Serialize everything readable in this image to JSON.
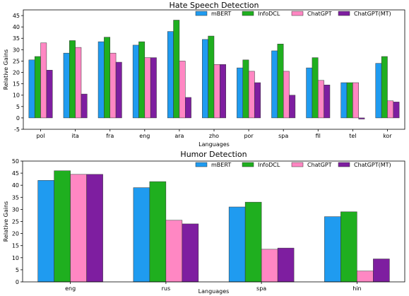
{
  "chart_data": [
    {
      "type": "bar",
      "title": "Hate Speech Detection",
      "xlabel": "Languages",
      "ylabel": "Relative Gains",
      "ylim": [
        -5,
        47.5
      ],
      "yticks": [
        -5,
        0,
        5,
        10,
        15,
        20,
        25,
        30,
        35,
        40,
        45
      ],
      "grid": false,
      "legend_position": "top-right",
      "categories": [
        "pol",
        "ita",
        "fra",
        "eng",
        "ara",
        "zho",
        "por",
        "spa",
        "fil",
        "tel",
        "kor"
      ],
      "series": [
        {
          "name": "mBERT",
          "color": "#1f9bf0",
          "values": [
            25.5,
            28.5,
            33.5,
            32,
            38,
            34.5,
            22,
            29.5,
            22,
            15.5,
            24
          ]
        },
        {
          "name": "InfoDCL",
          "color": "#1faf1f",
          "values": [
            27,
            34,
            35.5,
            33.5,
            43,
            36,
            25.5,
            32.5,
            26.5,
            15.5,
            27
          ]
        },
        {
          "name": "ChatGPT",
          "color": "#ff87c3",
          "values": [
            33,
            31,
            28.5,
            26.5,
            25,
            23.5,
            20.5,
            20.5,
            16.5,
            15.5,
            7.5
          ]
        },
        {
          "name": "ChatGPT(MT)",
          "color": "#7e1ea0",
          "values": [
            21,
            10.5,
            24.5,
            26.5,
            9,
            23.5,
            15.5,
            10,
            14.5,
            -0.5,
            7
          ]
        }
      ]
    },
    {
      "type": "bar",
      "title": "Humor Detection",
      "xlabel": "Languages",
      "ylabel": "Relative Gains",
      "ylim": [
        0,
        50
      ],
      "yticks": [
        0,
        5,
        10,
        15,
        20,
        25,
        30,
        35,
        40,
        45,
        50
      ],
      "grid": false,
      "legend_position": "top-right",
      "categories": [
        "eng",
        "rus",
        "spa",
        "hin"
      ],
      "series": [
        {
          "name": "mBERT",
          "color": "#1f9bf0",
          "values": [
            42,
            39,
            31,
            27
          ]
        },
        {
          "name": "InfoDCL",
          "color": "#1faf1f",
          "values": [
            46,
            41.5,
            33,
            29
          ]
        },
        {
          "name": "ChatGPT",
          "color": "#ff87c3",
          "values": [
            44.5,
            25.5,
            13.5,
            4.5
          ]
        },
        {
          "name": "ChatGPT(MT)",
          "color": "#7e1ea0",
          "values": [
            44.5,
            24,
            14,
            9.5
          ]
        }
      ]
    }
  ]
}
